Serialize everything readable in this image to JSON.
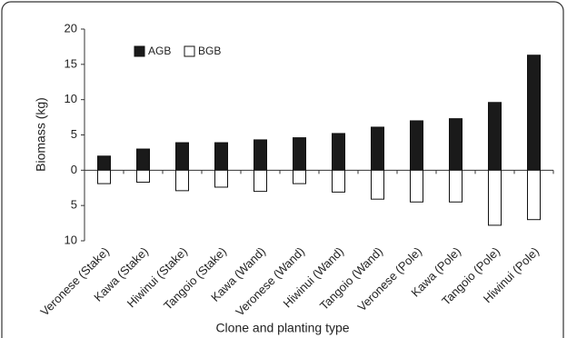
{
  "chart_data": {
    "type": "bar",
    "xlabel": "Clone and planting type",
    "ylabel": "Biomass (kg)",
    "categories": [
      "Veronese (Stake)",
      "Kawa (Stake)",
      "Hiwinui (Stake)",
      "Tangoio (Stake)",
      "Kawa (Wand)",
      "Veronese (Wand)",
      "Hiwinui (Wand)",
      "Tangoio (Wand)",
      "Veronese (Pole)",
      "Kawa (Pole)",
      "Tangoio (Pole)",
      "Hiwinui (Pole)"
    ],
    "series": [
      {
        "name": "AGB",
        "color": "#1a1a1a",
        "values": [
          2.0,
          3.0,
          3.9,
          3.9,
          4.3,
          4.6,
          5.2,
          6.1,
          7.0,
          7.3,
          9.6,
          16.3
        ]
      },
      {
        "name": "BGB",
        "color": "#ffffff",
        "values": [
          -1.9,
          -1.7,
          -2.9,
          -2.4,
          -3.0,
          -1.9,
          -3.1,
          -4.1,
          -4.5,
          -4.5,
          -7.8,
          -7.0
        ]
      }
    ],
    "ylim": [
      -10,
      20
    ],
    "yticks": [
      {
        "value": -10,
        "label": "10"
      },
      {
        "value": -5,
        "label": "5"
      },
      0,
      5,
      10,
      15,
      20
    ],
    "legend": "top-left"
  }
}
